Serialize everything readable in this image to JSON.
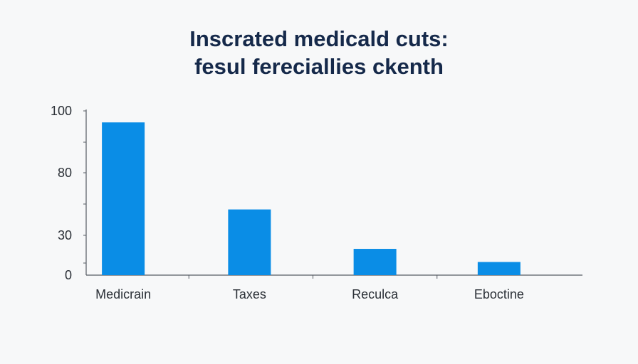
{
  "title_lines": [
    "Inscrated medicald cuts:",
    "fesul fereciallies ckenth"
  ],
  "colors": {
    "bar": "#0a8de6",
    "axis": "#555b63",
    "title": "#15294a",
    "text": "#2a2f36",
    "background": "#f7f8f9"
  },
  "chart_data": {
    "type": "bar",
    "title": "Inscrated medicald cuts: fesul fereciallies ckenth",
    "xlabel": "",
    "ylabel": "",
    "categories": [
      "Medicrain",
      "Taxes",
      "Reculca",
      "Eboctine"
    ],
    "values": [
      93,
      40,
      16,
      8
    ],
    "y_ticks": [
      {
        "label": "100",
        "value": 100
      },
      {
        "label": "80",
        "value": 80
      },
      {
        "label": "30",
        "value": 30
      },
      {
        "label": "0",
        "value": 0
      }
    ],
    "ylim": [
      0,
      100
    ],
    "grid": false,
    "legend": "none"
  }
}
